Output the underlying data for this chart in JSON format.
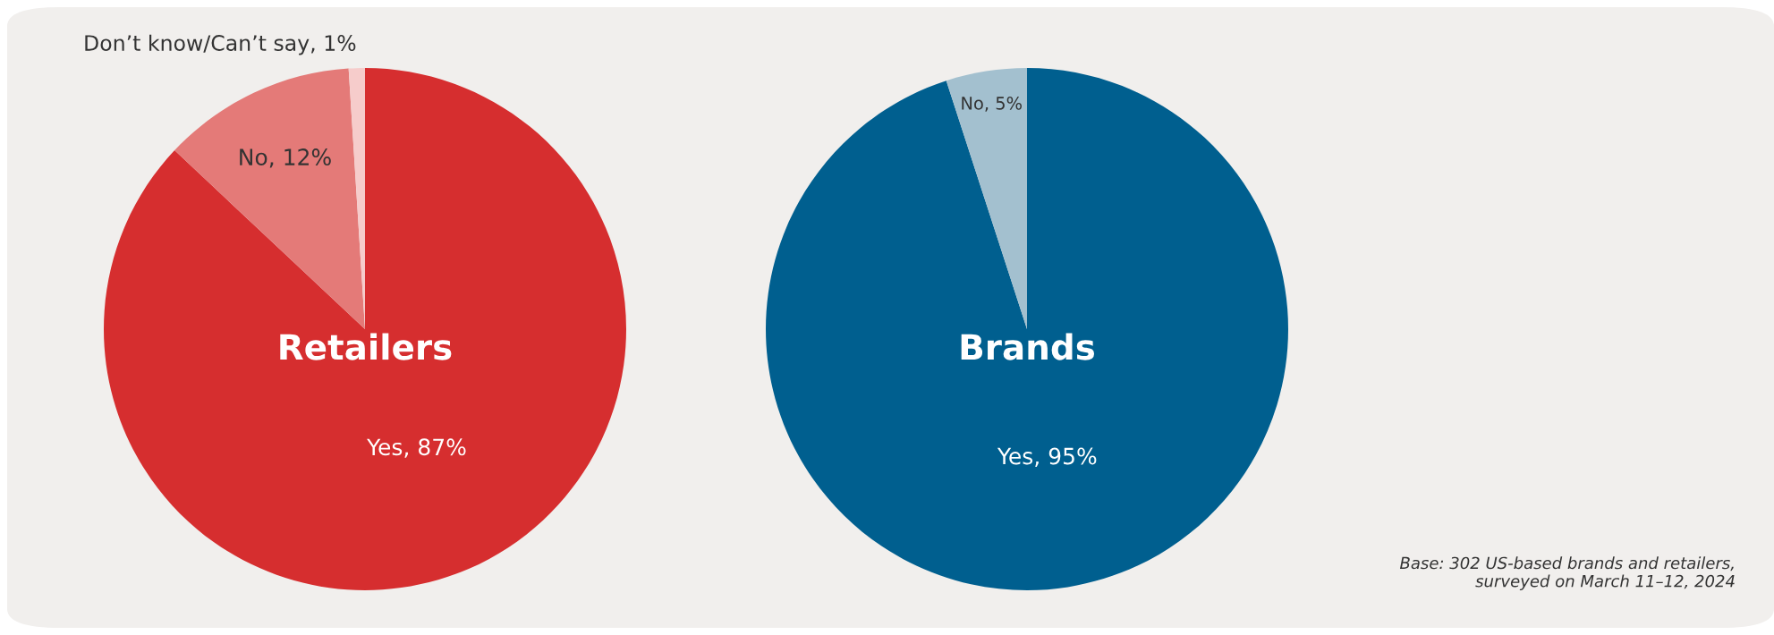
{
  "chart_data": [
    {
      "type": "pie",
      "title": "Retailers",
      "categories": [
        "Yes",
        "No",
        "Don’t know/Can’t say"
      ],
      "values": [
        87,
        12,
        1
      ],
      "value_labels": [
        "87%",
        "12%",
        "1%"
      ],
      "colors": [
        "#d62e2f",
        "#e47a78",
        "#f6cccb"
      ]
    },
    {
      "type": "pie",
      "title": "Brands",
      "categories": [
        "Yes",
        "No"
      ],
      "values": [
        95,
        5
      ],
      "value_labels": [
        "95%",
        "5%"
      ],
      "colors": [
        "#005f8f",
        "#a3c0cf"
      ],
      "annotations": [
        "Base: 302 US-based brands and retailers,\nsurveyed on March 11–12, 2024"
      ]
    }
  ]
}
